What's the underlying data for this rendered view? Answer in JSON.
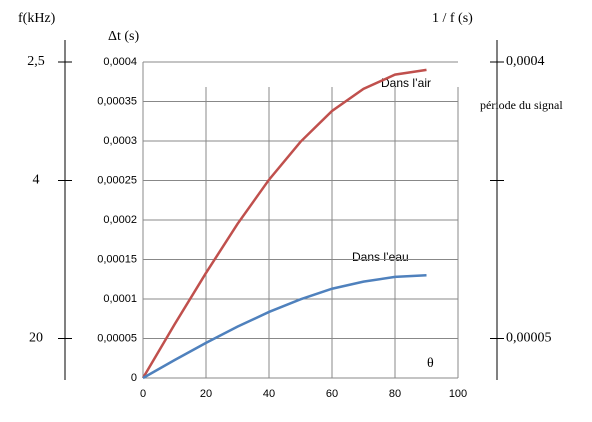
{
  "chart_data": {
    "type": "line",
    "y_label": "Δt (s)",
    "left_label": "f(kHz)",
    "y2_label": "1 / f (s)",
    "annotations": [
      "Dans l’air",
      "Dans l’eau",
      "θ",
      "période du signal"
    ],
    "x": [
      0,
      10,
      20,
      30,
      40,
      50,
      60,
      70,
      80,
      90
    ],
    "series": [
      {
        "name": "Dans l’air",
        "color": "#c0504d",
        "values": [
          0,
          6.77e-05,
          0.000133,
          0.000195,
          0.000251,
          0.000299,
          0.000338,
          0.000366,
          0.000384,
          0.00039
        ]
      },
      {
        "name": "Dans l’eau",
        "color": "#4f81bd",
        "values": [
          0,
          2.26e-05,
          4.45e-05,
          6.5e-05,
          8.36e-05,
          9.96e-05,
          0.000113,
          0.000122,
          0.000128,
          0.00013
        ]
      }
    ],
    "xlim": [
      0,
      100
    ],
    "xticks": [
      0,
      20,
      40,
      60,
      80,
      100
    ],
    "ylim": [
      0,
      0.0004
    ],
    "yticks": [
      0,
      {
        "value": 5e-05,
        "label": "0,00005"
      },
      {
        "value": 0.0001,
        "label": "0,0001"
      },
      {
        "value": 0.00015,
        "label": "0,00015"
      },
      {
        "value": 0.0002,
        "label": "0,0002"
      },
      {
        "value": 0.00025,
        "label": "0,00025"
      },
      {
        "value": 0.0003,
        "label": "0,0003"
      },
      {
        "value": 0.00035,
        "label": "0,00035"
      },
      {
        "value": 0.0004,
        "label": "0,0004"
      }
    ],
    "fticks": [
      {
        "value": 2.5,
        "label": "2,5"
      },
      4,
      20
    ],
    "y2lim": [
      0,
      0.0004
    ],
    "y2ticks": [
      {
        "value": 0.0004,
        "label": "0,0004"
      },
      {
        "value": 0.00025,
        "label": null
      },
      {
        "value": 5e-05,
        "label": "0,00005"
      }
    ],
    "grid": true
  }
}
